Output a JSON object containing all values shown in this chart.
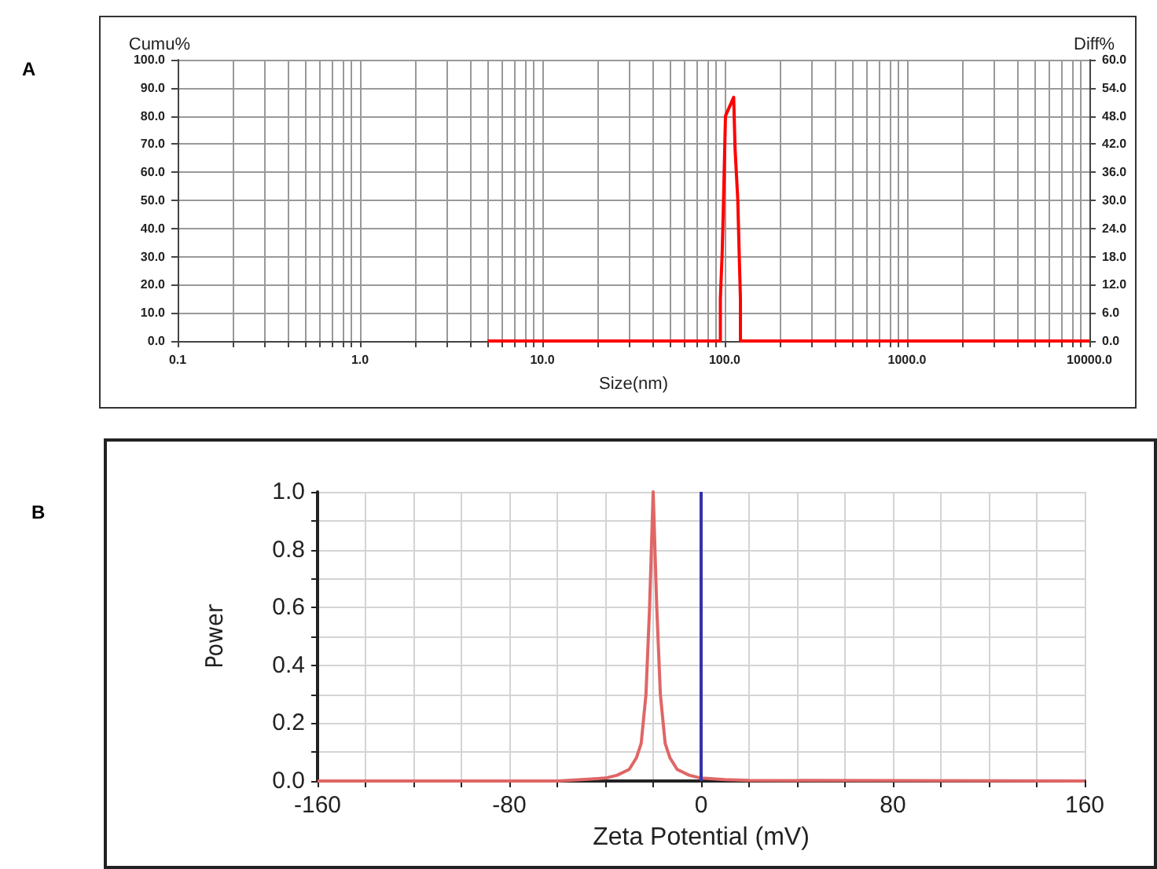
{
  "chart_data": [
    {
      "type": "line",
      "annotations": [
        "A"
      ],
      "xlabel": "Size(nm)",
      "ylabel": "Cumu%",
      "y2label": "Diff%",
      "log": "x",
      "grid": true,
      "marker": "none",
      "line_style": "solid",
      "xlim": [
        0.1,
        10000
      ],
      "xticks": [
        {
          "value": 0.1,
          "label": "0.1"
        },
        {
          "value": 0.2,
          "label": null
        },
        {
          "value": 0.3,
          "label": null
        },
        {
          "value": 0.4,
          "label": null
        },
        {
          "value": 0.5,
          "label": null
        },
        {
          "value": 0.6,
          "label": null
        },
        {
          "value": 0.7,
          "label": null
        },
        {
          "value": 0.8,
          "label": null
        },
        {
          "value": 0.9,
          "label": null
        },
        {
          "value": 1,
          "label": "1.0"
        },
        {
          "value": 2,
          "label": null
        },
        {
          "value": 3,
          "label": null
        },
        {
          "value": 4,
          "label": null
        },
        {
          "value": 5,
          "label": null
        },
        {
          "value": 6,
          "label": null
        },
        {
          "value": 7,
          "label": null
        },
        {
          "value": 8,
          "label": null
        },
        {
          "value": 9,
          "label": null
        },
        {
          "value": 10,
          "label": "10.0"
        },
        {
          "value": 20,
          "label": null
        },
        {
          "value": 30,
          "label": null
        },
        {
          "value": 40,
          "label": null
        },
        {
          "value": 50,
          "label": null
        },
        {
          "value": 60,
          "label": null
        },
        {
          "value": 70,
          "label": null
        },
        {
          "value": 80,
          "label": null
        },
        {
          "value": 90,
          "label": null
        },
        {
          "value": 100,
          "label": "100.0"
        },
        {
          "value": 200,
          "label": null
        },
        {
          "value": 300,
          "label": null
        },
        {
          "value": 400,
          "label": null
        },
        {
          "value": 500,
          "label": null
        },
        {
          "value": 600,
          "label": null
        },
        {
          "value": 700,
          "label": null
        },
        {
          "value": 800,
          "label": null
        },
        {
          "value": 900,
          "label": null
        },
        {
          "value": 1000,
          "label": "1000.0"
        },
        {
          "value": 2000,
          "label": null
        },
        {
          "value": 3000,
          "label": null
        },
        {
          "value": 4000,
          "label": null
        },
        {
          "value": 5000,
          "label": null
        },
        {
          "value": 6000,
          "label": null
        },
        {
          "value": 7000,
          "label": null
        },
        {
          "value": 8000,
          "label": null
        },
        {
          "value": 9000,
          "label": null
        },
        {
          "value": 10000,
          "label": "10000.0"
        }
      ],
      "ylim": [
        0,
        100
      ],
      "yticks": [
        {
          "value": 0,
          "label": "0.0"
        },
        {
          "value": 10,
          "label": "10.0"
        },
        {
          "value": 20,
          "label": "20.0"
        },
        {
          "value": 30,
          "label": "30.0"
        },
        {
          "value": 40,
          "label": "40.0"
        },
        {
          "value": 50,
          "label": "50.0"
        },
        {
          "value": 60,
          "label": "60.0"
        },
        {
          "value": 70,
          "label": "70.0"
        },
        {
          "value": 80,
          "label": "80.0"
        },
        {
          "value": 90,
          "label": "90.0"
        },
        {
          "value": 100,
          "label": "100.0"
        }
      ],
      "y2lim": [
        0,
        60
      ],
      "y2ticks": [
        {
          "value": 0,
          "label": "0.0"
        },
        {
          "value": 6,
          "label": "6.0"
        },
        {
          "value": 12,
          "label": "12.0"
        },
        {
          "value": 18,
          "label": "18.0"
        },
        {
          "value": 24,
          "label": "24.0"
        },
        {
          "value": 30,
          "label": "30.0"
        },
        {
          "value": 36,
          "label": "36.0"
        },
        {
          "value": 42,
          "label": "42.0"
        },
        {
          "value": 48,
          "label": "48.0"
        },
        {
          "value": 54,
          "label": "54.0"
        },
        {
          "value": 60,
          "label": "60.0"
        }
      ],
      "series": [
        {
          "color": "#ff0000",
          "axis": "y2",
          "x": [
            5,
            94.7,
            94.7,
            96.9,
            98.4,
            101,
            112,
            114,
            118,
            120,
            122,
            122,
            10000
          ],
          "values": [
            0,
            0,
            9,
            19,
            29,
            48,
            52,
            41,
            30,
            19,
            9,
            0,
            0
          ]
        }
      ]
    },
    {
      "type": "line",
      "annotations": [
        "B"
      ],
      "xlabel": "Zeta Potential (mV)",
      "ylabel": "Power",
      "grid": true,
      "marker": "none",
      "line_style": "solid",
      "xlim": [
        -160,
        160
      ],
      "xticks": [
        -160,
        {
          "value": -140,
          "label": null
        },
        {
          "value": -120,
          "label": null
        },
        {
          "value": -100,
          "label": null
        },
        -80,
        {
          "value": -60,
          "label": null
        },
        {
          "value": -40,
          "label": null
        },
        {
          "value": -20,
          "label": null
        },
        0,
        {
          "value": 20,
          "label": null
        },
        {
          "value": 40,
          "label": null
        },
        {
          "value": 60,
          "label": null
        },
        80,
        {
          "value": 100,
          "label": null
        },
        {
          "value": 120,
          "label": null
        },
        {
          "value": 140,
          "label": null
        },
        160
      ],
      "ylim": [
        0,
        1
      ],
      "yticks": [
        {
          "value": 0,
          "label": "0.0"
        },
        {
          "value": 0.1,
          "label": null
        },
        {
          "value": 0.2,
          "label": "0.2"
        },
        {
          "value": 0.3,
          "label": null
        },
        {
          "value": 0.4,
          "label": "0.4"
        },
        {
          "value": 0.5,
          "label": null
        },
        {
          "value": 0.6,
          "label": "0.6"
        },
        {
          "value": 0.7,
          "label": null
        },
        {
          "value": 0.8,
          "label": "0.8"
        },
        {
          "value": 0.9,
          "label": null
        },
        {
          "value": 1,
          "label": "1.0"
        }
      ],
      "ref_lines": [
        {
          "axis": "x",
          "value": 0,
          "color": "#3333aa",
          "line_style": "solid"
        }
      ],
      "series": [
        {
          "color": "#e06666",
          "x": [
            -160,
            -60,
            -50,
            -40,
            -35,
            -30,
            -27,
            -25,
            -23,
            -21.5,
            -20,
            -18.5,
            -17,
            -15,
            -13,
            -10,
            -5,
            0,
            10,
            20,
            160
          ],
          "values": [
            0,
            0,
            0.005,
            0.01,
            0.02,
            0.04,
            0.08,
            0.13,
            0.3,
            0.6,
            1,
            0.6,
            0.3,
            0.13,
            0.08,
            0.04,
            0.02,
            0.01,
            0.005,
            0.002,
            0
          ]
        }
      ]
    }
  ]
}
